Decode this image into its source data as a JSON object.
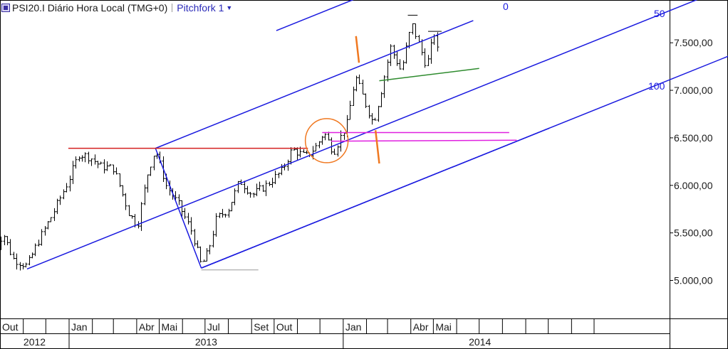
{
  "header": {
    "title": "PSI20.I Diário Hora Local (TMG+0)",
    "indicator": "Pitchfork 1"
  },
  "chart_data": {
    "type": "bar",
    "subtype": "ohlc",
    "title": "PSI20.I Diário Hora Local (TMG+0)",
    "ylim": [
      4600,
      7950
    ],
    "y_ticks": [
      5000,
      5500,
      6000,
      6500,
      7000,
      7500
    ],
    "y_tick_labels": [
      "5.000,00",
      "5.500,00",
      "6.000,00",
      "6.500,00",
      "7.000,00",
      "7.500,00"
    ],
    "x_month_labels": [
      "Out",
      "Jan",
      "Abr",
      "Mai",
      "Jul",
      "Set",
      "Out",
      "Jan",
      "Abr",
      "Mai"
    ],
    "x_year_labels": [
      "2012",
      "2013",
      "2014"
    ],
    "grid": false,
    "colors": {
      "price": "#000000",
      "pitchfork": "#1a1adf",
      "resistance": "#d42020",
      "trend_green": "#2e8b2e",
      "magenta": "#e020e0",
      "orange": "#f07820",
      "support_gray": "#999999"
    },
    "pitchfork_labels": [
      "0",
      "50",
      "100"
    ],
    "price_path": [
      [
        "2012-09-24",
        5300
      ],
      [
        "2012-10-05",
        5500
      ],
      [
        "2012-10-18",
        5230
      ],
      [
        "2012-11-06",
        5150
      ],
      [
        "2012-11-20",
        5400
      ],
      [
        "2012-12-10",
        5700
      ],
      [
        "2012-12-31",
        6050
      ],
      [
        "2013-01-14",
        6330
      ],
      [
        "2013-01-28",
        6300
      ],
      [
        "2013-02-12",
        6200
      ],
      [
        "2013-03-01",
        6180
      ],
      [
        "2013-03-22",
        5700
      ],
      [
        "2013-04-02",
        5580
      ],
      [
        "2013-04-16",
        6150
      ],
      [
        "2013-04-26",
        6380
      ],
      [
        "2013-05-10",
        6000
      ],
      [
        "2013-05-28",
        5780
      ],
      [
        "2013-06-14",
        5500
      ],
      [
        "2013-06-26",
        5150
      ],
      [
        "2013-07-05",
        5300
      ],
      [
        "2013-07-16",
        5650
      ],
      [
        "2013-08-01",
        5750
      ],
      [
        "2013-08-16",
        6050
      ],
      [
        "2013-09-02",
        5900
      ],
      [
        "2013-09-20",
        6000
      ],
      [
        "2013-10-11",
        6150
      ],
      [
        "2013-10-25",
        6380
      ],
      [
        "2013-11-12",
        6300
      ],
      [
        "2013-11-27",
        6420
      ],
      [
        "2013-12-06",
        6560
      ],
      [
        "2013-12-19",
        6350
      ],
      [
        "2014-01-06",
        6650
      ],
      [
        "2014-01-17",
        7150
      ],
      [
        "2014-01-31",
        6850
      ],
      [
        "2014-02-10",
        6650
      ],
      [
        "2014-02-20",
        6980
      ],
      [
        "2014-03-05",
        7450
      ],
      [
        "2014-03-19",
        7200
      ],
      [
        "2014-04-02",
        7700
      ],
      [
        "2014-04-11",
        7500
      ],
      [
        "2014-04-22",
        7250
      ],
      [
        "2014-05-02",
        7600
      ],
      [
        "2014-05-09",
        7300
      ]
    ]
  }
}
